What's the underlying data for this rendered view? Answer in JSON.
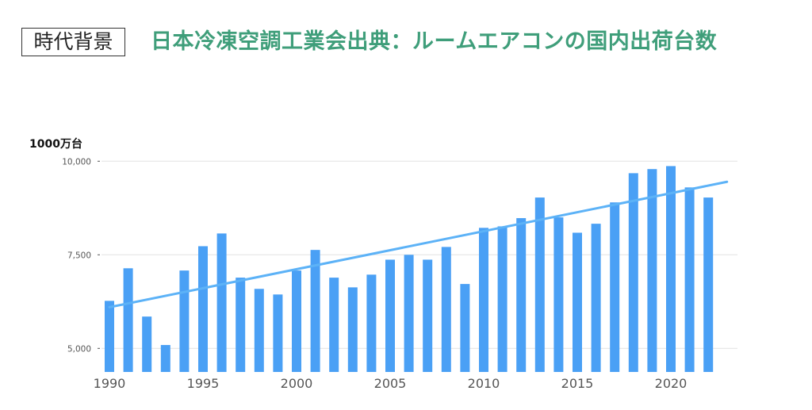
{
  "header": {
    "tag": "時代背景",
    "title": "日本冷凍空調工業会出典：ルームエアコンの国内出荷台数",
    "title_color": "#3f9e7a"
  },
  "chart_data": {
    "type": "bar",
    "unit_label": "1000万台",
    "x": [
      1990,
      1991,
      1992,
      1993,
      1994,
      1995,
      1996,
      1997,
      1998,
      1999,
      2000,
      2001,
      2002,
      2003,
      2004,
      2005,
      2006,
      2007,
      2008,
      2009,
      2010,
      2011,
      2012,
      2013,
      2014,
      2015,
      2016,
      2017,
      2018,
      2019,
      2020,
      2021,
      2022
    ],
    "values": [
      6270,
      7140,
      5850,
      5090,
      7080,
      7730,
      8070,
      6890,
      6590,
      6440,
      7080,
      7630,
      6890,
      6630,
      6970,
      7370,
      7500,
      7370,
      7710,
      6720,
      8220,
      8260,
      8480,
      9030,
      8500,
      8090,
      8330,
      8900,
      9680,
      9790,
      9870,
      9300,
      9030
    ],
    "trendline": {
      "type": "linear",
      "start": [
        1990,
        6100
      ],
      "end": [
        2023,
        9450
      ]
    },
    "ylim": [
      4370,
      10000
    ],
    "yticks": [
      5000,
      7500,
      10000
    ],
    "ytick_labels": [
      "5,000",
      "7,500",
      "10,000"
    ],
    "xticks": [
      1990,
      1995,
      2000,
      2005,
      2010,
      2015,
      2020
    ],
    "xtick_labels": [
      "1990",
      "1995",
      "2000",
      "2005",
      "2010",
      "2015",
      "2020"
    ],
    "grid": true,
    "bar_color": "#4aa0f5",
    "trend_color": "#5cb2f7"
  }
}
